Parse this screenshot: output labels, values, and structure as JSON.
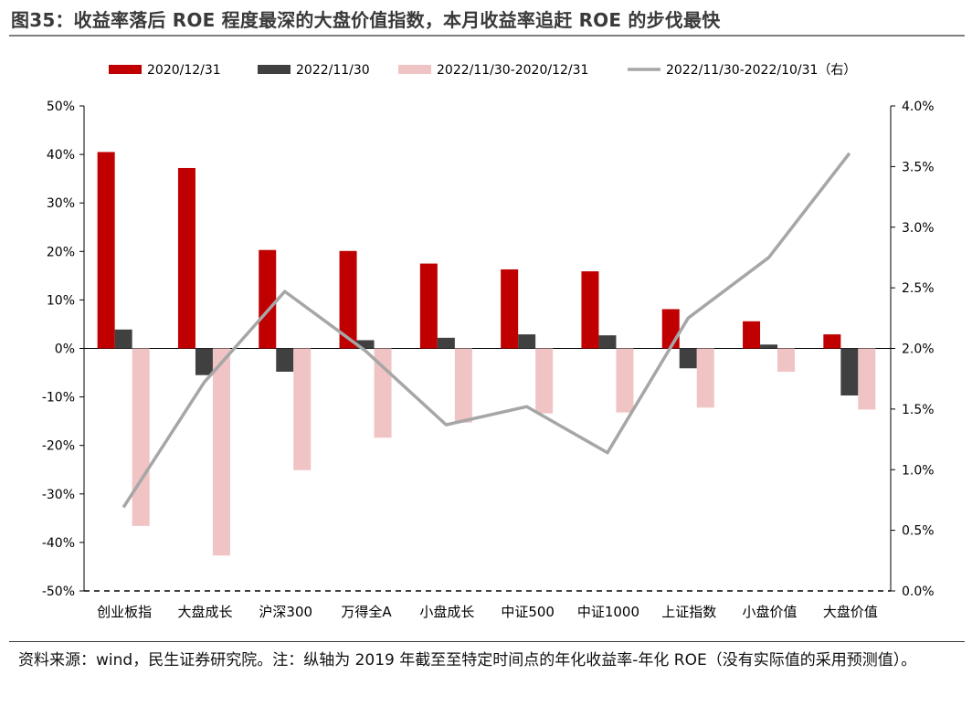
{
  "figure": {
    "title": "图35：收益率落后 ROE 程度最深的大盘价值指数，本月收益率追赶 ROE 的步伐最快",
    "source_note": "资料来源：wind，民生证券研究院。注：纵轴为 2019 年截至至特定时间点的年化收益率-年化 ROE（没有实际值的采用预测值）。"
  },
  "chart_data": {
    "type": "bar",
    "categories": [
      "创业板指",
      "大盘成长",
      "沪深300",
      "万得全A",
      "小盘成长",
      "中证500",
      "中证1000",
      "上证指数",
      "小盘价值",
      "大盘价值"
    ],
    "series": [
      {
        "name": "2020/12/31",
        "type": "bar",
        "axis": "left",
        "color": "#c00000",
        "values": [
          40.5,
          37.2,
          20.3,
          20.1,
          17.5,
          16.3,
          15.9,
          8.1,
          5.6,
          2.9
        ]
      },
      {
        "name": "2022/11/30",
        "type": "bar",
        "axis": "left",
        "color": "#404040",
        "values": [
          3.9,
          -5.5,
          -4.8,
          1.7,
          2.2,
          2.9,
          2.7,
          -4.1,
          0.8,
          -9.7
        ]
      },
      {
        "name": "2022/11/30-2020/12/31",
        "type": "bar",
        "axis": "left",
        "color": "#f0c4c4",
        "values": [
          -36.6,
          -42.7,
          -25.1,
          -18.4,
          -15.3,
          -13.4,
          -13.2,
          -12.2,
          -4.8,
          -12.6
        ]
      },
      {
        "name": "2022/11/30-2022/10/31（右）",
        "type": "line",
        "axis": "right",
        "color": "#a6a6a6",
        "values": [
          0.69,
          1.72,
          2.47,
          1.98,
          1.37,
          1.52,
          1.14,
          2.25,
          2.75,
          3.61
        ]
      }
    ],
    "left_axis": {
      "min": -50,
      "max": 50,
      "step": 10,
      "format": "percent0",
      "ticks": [
        "50%",
        "40%",
        "30%",
        "20%",
        "10%",
        "0%",
        "-10%",
        "-20%",
        "-30%",
        "-40%",
        "-50%"
      ]
    },
    "right_axis": {
      "min": 0.0,
      "max": 4.0,
      "step": 0.5,
      "format": "percent1",
      "ticks": [
        "4.0%",
        "3.5%",
        "3.0%",
        "2.5%",
        "2.0%",
        "1.5%",
        "1.0%",
        "0.5%",
        "0.0%"
      ]
    },
    "legend": {
      "placement": "top-center"
    },
    "grid": false
  }
}
